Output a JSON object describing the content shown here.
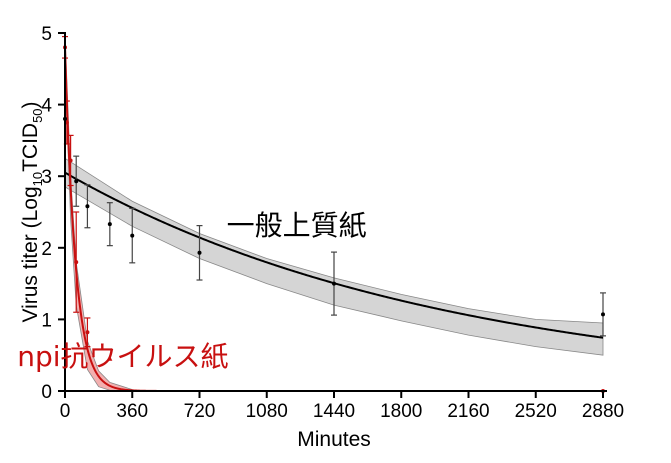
{
  "chart_data": {
    "type": "scatter",
    "xlabel": "Minutes",
    "ylabel": {
      "prefix": "Virus titer (Log",
      "sub1": "10",
      "mid": "TCID",
      "sub2": "50",
      "suffix": ")"
    },
    "xlim": [
      0,
      2880
    ],
    "ylim": [
      0,
      5
    ],
    "xticks": [
      "0",
      "360",
      "720",
      "1080",
      "1440",
      "1800",
      "2160",
      "2520",
      "2880"
    ],
    "yticks": [
      "0",
      "1",
      "2",
      "3",
      "4",
      "5"
    ],
    "grid": false,
    "series": [
      {
        "name": "一般上質紙",
        "color": "#000000",
        "band_color": "#d0d0d0",
        "fit": {
          "a": 3.05,
          "k": 0.00049
        },
        "band": {
          "lower": [
            [
              0,
              2.85
            ],
            [
              360,
              2.3
            ],
            [
              720,
              1.85
            ],
            [
              1080,
              1.5
            ],
            [
              1440,
              1.2
            ],
            [
              1800,
              0.98
            ],
            [
              2160,
              0.78
            ],
            [
              2520,
              0.62
            ],
            [
              2880,
              0.5
            ]
          ],
          "upper": [
            [
              0,
              3.25
            ],
            [
              360,
              2.65
            ],
            [
              720,
              2.2
            ],
            [
              1080,
              1.85
            ],
            [
              1440,
              1.58
            ],
            [
              1800,
              1.35
            ],
            [
              2160,
              1.15
            ],
            [
              2520,
              1.0
            ],
            [
              2880,
              0.95
            ]
          ]
        },
        "points": [
          {
            "x": 0,
            "y": 3.8,
            "err": 0.0
          },
          {
            "x": 60,
            "y": 2.93,
            "err": 0.35
          },
          {
            "x": 120,
            "y": 2.58,
            "err": 0.3
          },
          {
            "x": 240,
            "y": 2.33,
            "err": 0.3
          },
          {
            "x": 360,
            "y": 2.17,
            "err": 0.38
          },
          {
            "x": 720,
            "y": 1.93,
            "err": 0.38
          },
          {
            "x": 1440,
            "y": 1.5,
            "err": 0.44
          },
          {
            "x": 2880,
            "y": 1.07,
            "err": 0.3
          }
        ]
      },
      {
        "name": "npi抗ウイルス紙",
        "color": "#c81010",
        "band_color": "#f2a6a6",
        "fit": {
          "a": 4.8,
          "k": 0.0175
        },
        "band": {
          "lower": [
            [
              0,
              4.5
            ],
            [
              30,
              2.4
            ],
            [
              60,
              1.2
            ],
            [
              120,
              0.3
            ],
            [
              180,
              0.06
            ],
            [
              240,
              0.01
            ],
            [
              360,
              0.0
            ]
          ],
          "upper": [
            [
              0,
              5.0
            ],
            [
              30,
              3.0
            ],
            [
              60,
              1.8
            ],
            [
              120,
              0.7
            ],
            [
              180,
              0.28
            ],
            [
              240,
              0.12
            ],
            [
              360,
              0.02
            ]
          ]
        },
        "points": [
          {
            "x": 0,
            "y": 4.8,
            "err": 0.15
          },
          {
            "x": 10,
            "y": 3.75,
            "err": 0.3
          },
          {
            "x": 30,
            "y": 3.22,
            "err": 0.35
          },
          {
            "x": 60,
            "y": 1.8,
            "err": 0.7
          },
          {
            "x": 120,
            "y": 0.82,
            "err": 0.2
          },
          {
            "x": 240,
            "y": 0.45,
            "err": 0.0
          },
          {
            "x": 2880,
            "y": 0.0,
            "err": 0.0
          }
        ]
      }
    ],
    "annotations": [
      {
        "text": "一般上質紙",
        "color": "#000000",
        "anchor": [
          1240,
          2.18
        ]
      },
      {
        "text": "npi抗ウイルス紙",
        "color": "#c81010",
        "anchor": [
          310,
          0.35
        ]
      }
    ]
  }
}
